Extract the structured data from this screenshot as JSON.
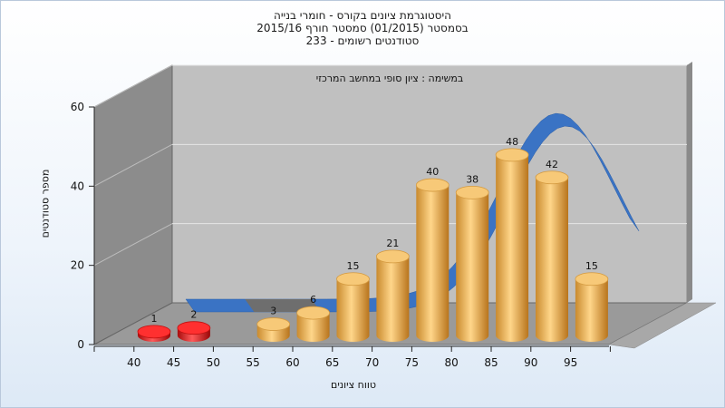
{
  "chart_data": {
    "type": "bar",
    "title_lines": [
      "היסטוגרמת ציונים בקורס - חומרי בנייה",
      "בסמסטר (01/2015) סמסטר חורף 2015/16",
      "סטודנטים רשומים - 233"
    ],
    "subtitle": "במשימה : ציון סופי במחשב המרכזי",
    "xlabel": "טווח ציונים",
    "ylabel": "מספר סטודנטים",
    "categories": [
      "40",
      "45",
      "50",
      "55",
      "60",
      "65",
      "70",
      "75",
      "80",
      "85",
      "90",
      "95"
    ],
    "values": [
      1,
      2,
      null,
      3,
      6,
      15,
      21,
      40,
      38,
      48,
      42,
      15
    ],
    "data_labels": [
      "1",
      "2",
      "",
      "3",
      "6",
      "15",
      "21",
      "40",
      "38",
      "48",
      "42",
      "15"
    ],
    "bar_colors": [
      "#e01e1e",
      "#e01e1e",
      null,
      "#f2b25a",
      "#f2b25a",
      "#f2b25a",
      "#f2b25a",
      "#f2b25a",
      "#f2b25a",
      "#f2b25a",
      "#f2b25a",
      "#f2b25a"
    ],
    "yticks": [
      "0",
      "20",
      "40",
      "60"
    ],
    "ylim": [
      0,
      60
    ],
    "grid": true,
    "curve_color": "#3a73c4",
    "grey_curve_color": "#6e6e6e"
  }
}
